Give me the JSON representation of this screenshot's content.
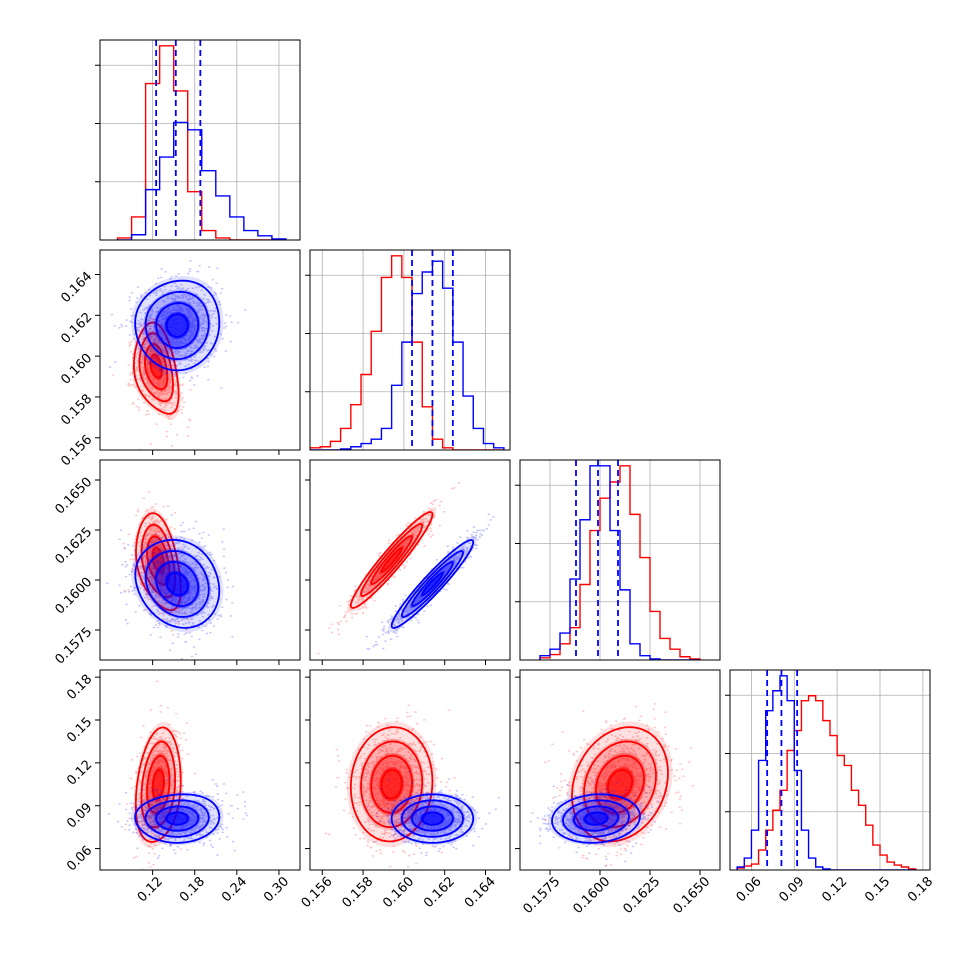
{
  "colors": {
    "red": "#ff0000",
    "blue": "#0000ff",
    "grid": "#b0b0b0",
    "frame": "#000000",
    "background": "#ffffff"
  },
  "chart_data": {
    "type": "corner",
    "grid": true,
    "series": [
      {
        "name": "",
        "color": "#ff0000"
      },
      {
        "name": "",
        "color": "#0000ff"
      }
    ],
    "axes": [
      {
        "id": "p1",
        "range": [
          0.045,
          0.33
        ],
        "ticks": [
          0.12,
          0.18,
          0.24,
          0.3
        ],
        "tick_labels": [
          "0.12",
          "0.18",
          "0.24",
          "0.30"
        ]
      },
      {
        "id": "p2",
        "range": [
          0.1554,
          0.1652
        ],
        "ticks": [
          0.156,
          0.158,
          0.16,
          0.162,
          0.164
        ],
        "tick_labels": [
          "0.156",
          "0.158",
          "0.160",
          "0.162",
          "0.164"
        ]
      },
      {
        "id": "p3",
        "range": [
          0.156,
          0.166
        ],
        "ticks": [
          0.1575,
          0.16,
          0.1625,
          0.165
        ],
        "tick_labels": [
          "0.1575",
          "0.1600",
          "0.1625",
          "0.1650"
        ]
      },
      {
        "id": "p4",
        "range": [
          0.045,
          0.185
        ],
        "ticks": [
          0.06,
          0.09,
          0.12,
          0.15,
          0.18
        ],
        "tick_labels": [
          "0.06",
          "0.09",
          "0.12",
          "0.15",
          "0.18"
        ]
      }
    ],
    "marginals": [
      {
        "axis": 0,
        "bin_edges": [
          0.07,
          0.09,
          0.11,
          0.13,
          0.15,
          0.17,
          0.19,
          0.21,
          0.23,
          0.25,
          0.27,
          0.29,
          0.31
        ],
        "counts": {
          "red": [
            2,
            22,
            149,
            185,
            142,
            46,
            9,
            2,
            0,
            0,
            0,
            0
          ],
          "blue": [
            0,
            5,
            48,
            79,
            112,
            105,
            66,
            42,
            22,
            9,
            4,
            1
          ]
        },
        "quantiles_blue": [
          0.125,
          0.153,
          0.188
        ]
      },
      {
        "axis": 1,
        "bin_edges": [
          0.1554,
          0.1559,
          0.1564,
          0.1569,
          0.1574,
          0.1579,
          0.1584,
          0.1589,
          0.1594,
          0.1599,
          0.1604,
          0.1609,
          0.1614,
          0.1619,
          0.1624,
          0.1629,
          0.1634,
          0.1639,
          0.1644,
          0.1649
        ],
        "counts": {
          "red": [
            2,
            3,
            8,
            20,
            42,
            70,
            110,
            160,
            180,
            160,
            100,
            40,
            10,
            2,
            0,
            0,
            0,
            0,
            0
          ],
          "blue": [
            0,
            0,
            0,
            1,
            3,
            6,
            10,
            20,
            60,
            100,
            145,
            165,
            175,
            150,
            100,
            50,
            20,
            6,
            2
          ]
        },
        "quantiles_blue": [
          0.1604,
          0.1614,
          0.1624
        ]
      },
      {
        "axis": 2,
        "bin_edges": [
          0.157,
          0.1575,
          0.158,
          0.1585,
          0.159,
          0.1595,
          0.16,
          0.1605,
          0.161,
          0.1615,
          0.162,
          0.1625,
          0.163,
          0.1635,
          0.164,
          0.1645,
          0.165
        ],
        "counts": {
          "red": [
            2,
            5,
            15,
            30,
            70,
            120,
            150,
            165,
            180,
            135,
            95,
            45,
            20,
            10,
            3,
            1
          ],
          "blue": [
            4,
            10,
            25,
            75,
            130,
            180,
            180,
            120,
            65,
            15,
            4,
            1,
            0,
            0,
            0,
            0
          ]
        },
        "quantiles_blue": [
          0.1588,
          0.1599,
          0.1609
        ]
      },
      {
        "axis": 3,
        "bin_edges": [
          0.05,
          0.055,
          0.06,
          0.065,
          0.07,
          0.075,
          0.08,
          0.085,
          0.09,
          0.095,
          0.1,
          0.105,
          0.11,
          0.115,
          0.12,
          0.125,
          0.13,
          0.135,
          0.14,
          0.145,
          0.15,
          0.155,
          0.16,
          0.165,
          0.17,
          0.175
        ],
        "counts": {
          "red": [
            2,
            4,
            6,
            20,
            40,
            60,
            80,
            120,
            140,
            170,
            175,
            170,
            150,
            135,
            115,
            105,
            80,
            65,
            45,
            25,
            15,
            8,
            5,
            3,
            1
          ],
          "blue": [
            3,
            12,
            40,
            110,
            160,
            180,
            195,
            170,
            100,
            40,
            12,
            3,
            1,
            0,
            0,
            0,
            0,
            0,
            0,
            0,
            0,
            0,
            0,
            0,
            0
          ]
        },
        "quantiles_blue": [
          0.071,
          0.081,
          0.092
        ]
      }
    ],
    "joints": [
      {
        "x": 0,
        "y": 1,
        "red": {
          "mx": 0.125,
          "my": 0.1595,
          "sx": 0.016,
          "sy": 0.0011,
          "rho": -0.35,
          "skew": 0.55
        },
        "blue": {
          "mx": 0.155,
          "my": 0.1615,
          "sx": 0.03,
          "sy": 0.0011,
          "rho": 0.0,
          "skew": 0.25
        }
      },
      {
        "x": 0,
        "y": 2,
        "red": {
          "mx": 0.128,
          "my": 0.161,
          "sx": 0.016,
          "sy": 0.0012,
          "rho": -0.4,
          "skew": 0.4
        },
        "blue": {
          "mx": 0.155,
          "my": 0.1598,
          "sx": 0.03,
          "sy": 0.0011,
          "rho": -0.2,
          "skew": 0.25
        }
      },
      {
        "x": 1,
        "y": 2,
        "red": {
          "mx": 0.1594,
          "my": 0.161,
          "sx": 0.001,
          "sy": 0.0012,
          "rho": 0.95,
          "skew": 0.0
        },
        "blue": {
          "mx": 0.1614,
          "my": 0.1598,
          "sx": 0.001,
          "sy": 0.0011,
          "rho": 0.95,
          "skew": 0.0
        }
      },
      {
        "x": 0,
        "y": 3,
        "red": {
          "mx": 0.128,
          "my": 0.105,
          "sx": 0.016,
          "sy": 0.02,
          "rho": 0.2,
          "skew": 0.3
        },
        "blue": {
          "mx": 0.155,
          "my": 0.081,
          "sx": 0.03,
          "sy": 0.0085,
          "rho": 0.0,
          "skew": 0.3
        }
      },
      {
        "x": 1,
        "y": 3,
        "red": {
          "mx": 0.1594,
          "my": 0.105,
          "sx": 0.001,
          "sy": 0.02,
          "rho": 0.05,
          "skew": 0.0
        },
        "blue": {
          "mx": 0.1614,
          "my": 0.081,
          "sx": 0.001,
          "sy": 0.0085,
          "rho": 0.0,
          "skew": 0.0
        }
      },
      {
        "x": 2,
        "y": 3,
        "red": {
          "mx": 0.161,
          "my": 0.105,
          "sx": 0.0012,
          "sy": 0.02,
          "rho": 0.2,
          "skew": 0.0
        },
        "blue": {
          "mx": 0.1598,
          "my": 0.081,
          "sx": 0.0011,
          "sy": 0.0085,
          "rho": 0.1,
          "skew": 0.0
        }
      }
    ]
  }
}
